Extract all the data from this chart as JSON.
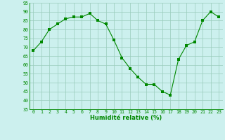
{
  "x": [
    0,
    1,
    2,
    3,
    4,
    5,
    6,
    7,
    8,
    9,
    10,
    11,
    12,
    13,
    14,
    15,
    16,
    17,
    18,
    19,
    20,
    21,
    22,
    23
  ],
  "y": [
    68,
    73,
    80,
    83,
    86,
    87,
    87,
    89,
    85,
    83,
    74,
    64,
    58,
    53,
    49,
    49,
    45,
    43,
    63,
    71,
    73,
    85,
    90,
    87
  ],
  "line_color": "#008800",
  "marker_color": "#008800",
  "bg_color": "#ccf0ee",
  "grid_color": "#99ccbb",
  "xlabel": "Humidité relative (%)",
  "xlabel_color": "#008800",
  "tick_color": "#008800",
  "ylim": [
    35,
    95
  ],
  "yticks": [
    35,
    40,
    45,
    50,
    55,
    60,
    65,
    70,
    75,
    80,
    85,
    90,
    95
  ],
  "xlim": [
    -0.5,
    23.5
  ],
  "xticks": [
    0,
    1,
    2,
    3,
    4,
    5,
    6,
    7,
    8,
    9,
    10,
    11,
    12,
    13,
    14,
    15,
    16,
    17,
    18,
    19,
    20,
    21,
    22,
    23
  ]
}
